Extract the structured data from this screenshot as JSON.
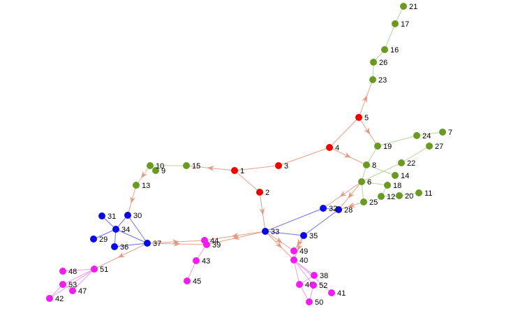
{
  "colors": {
    "red": "#f20000",
    "green": "#6b9a22",
    "blue": "#0a0ae6",
    "magenta": "#f01cf0",
    "edge_red": "#e9a08a",
    "edge_green": "#bcd39a",
    "edge_blue": "#6f6ff0",
    "edge_magenta": "#ec9cec",
    "arrow": "#e0957a"
  },
  "nodes": [
    {
      "id": "1",
      "label": "1",
      "group": "red"
    },
    {
      "id": "2",
      "label": "2",
      "group": "red"
    },
    {
      "id": "3",
      "label": "3",
      "group": "red"
    },
    {
      "id": "4",
      "label": "4",
      "group": "red"
    },
    {
      "id": "5",
      "label": "5",
      "group": "red"
    },
    {
      "id": "6",
      "label": "6",
      "group": "green"
    },
    {
      "id": "7",
      "label": "7",
      "group": "green"
    },
    {
      "id": "8",
      "label": "8",
      "group": "green"
    },
    {
      "id": "9",
      "label": "9",
      "group": "green"
    },
    {
      "id": "10",
      "label": "10",
      "group": "green"
    },
    {
      "id": "11",
      "label": "11",
      "group": "green"
    },
    {
      "id": "12",
      "label": "12",
      "group": "green"
    },
    {
      "id": "13",
      "label": "13",
      "group": "green"
    },
    {
      "id": "14",
      "label": "14",
      "group": "green"
    },
    {
      "id": "15",
      "label": "15",
      "group": "green"
    },
    {
      "id": "16",
      "label": "16",
      "group": "green"
    },
    {
      "id": "17",
      "label": "17",
      "group": "green"
    },
    {
      "id": "18",
      "label": "18",
      "group": "green"
    },
    {
      "id": "19",
      "label": "19",
      "group": "green"
    },
    {
      "id": "20",
      "label": "20",
      "group": "green"
    },
    {
      "id": "21",
      "label": "21",
      "group": "green"
    },
    {
      "id": "22",
      "label": "22",
      "group": "green"
    },
    {
      "id": "23",
      "label": "23",
      "group": "green"
    },
    {
      "id": "24",
      "label": "24",
      "group": "green"
    },
    {
      "id": "25",
      "label": "25",
      "group": "green"
    },
    {
      "id": "26",
      "label": "26",
      "group": "green"
    },
    {
      "id": "27",
      "label": "27",
      "group": "green"
    },
    {
      "id": "28",
      "label": "28",
      "group": "blue"
    },
    {
      "id": "29",
      "label": "29",
      "group": "blue"
    },
    {
      "id": "30",
      "label": "30",
      "group": "blue"
    },
    {
      "id": "31",
      "label": "31",
      "group": "blue"
    },
    {
      "id": "32",
      "label": "32",
      "group": "blue"
    },
    {
      "id": "33",
      "label": "33",
      "group": "blue"
    },
    {
      "id": "34",
      "label": "34",
      "group": "blue"
    },
    {
      "id": "35",
      "label": "35",
      "group": "blue"
    },
    {
      "id": "36",
      "label": "36",
      "group": "blue"
    },
    {
      "id": "37",
      "label": "37",
      "group": "blue"
    },
    {
      "id": "38",
      "label": "38",
      "group": "magenta"
    },
    {
      "id": "39",
      "label": "39",
      "group": "magenta"
    },
    {
      "id": "40",
      "label": "40",
      "group": "magenta"
    },
    {
      "id": "41",
      "label": "41",
      "group": "magenta"
    },
    {
      "id": "42",
      "label": "42",
      "group": "magenta"
    },
    {
      "id": "43",
      "label": "43",
      "group": "magenta"
    },
    {
      "id": "44",
      "label": "44",
      "group": "magenta"
    },
    {
      "id": "45",
      "label": "45",
      "group": "magenta"
    },
    {
      "id": "46",
      "label": "46",
      "group": "magenta"
    },
    {
      "id": "47",
      "label": "47",
      "group": "magenta"
    },
    {
      "id": "48",
      "label": "48",
      "group": "magenta"
    },
    {
      "id": "49",
      "label": "49",
      "group": "magenta"
    },
    {
      "id": "50",
      "label": "50",
      "group": "magenta"
    },
    {
      "id": "51",
      "label": "51",
      "group": "magenta"
    },
    {
      "id": "52",
      "label": "52",
      "group": "magenta"
    },
    {
      "id": "53",
      "label": "53",
      "group": "magenta"
    }
  ],
  "edges": [
    {
      "from": "3",
      "to": "1",
      "color": "red",
      "arrow": false
    },
    {
      "from": "1",
      "to": "15",
      "color": "red",
      "arrow": true
    },
    {
      "from": "1",
      "to": "2",
      "color": "red",
      "arrow": false
    },
    {
      "from": "3",
      "to": "4",
      "color": "red",
      "arrow": false
    },
    {
      "from": "4",
      "to": "5",
      "color": "red",
      "arrow": false
    },
    {
      "from": "4",
      "to": "8",
      "color": "red",
      "arrow": true
    },
    {
      "from": "5",
      "to": "23",
      "color": "red",
      "arrow": true
    },
    {
      "from": "5",
      "to": "19",
      "color": "red",
      "arrow": true
    },
    {
      "from": "2",
      "to": "33",
      "color": "red",
      "arrow": true
    },
    {
      "from": "15",
      "to": "10",
      "color": "green",
      "arrow": false
    },
    {
      "from": "10",
      "to": "9",
      "color": "green",
      "arrow": false
    },
    {
      "from": "10",
      "to": "13",
      "color": "green",
      "arrow": true
    },
    {
      "from": "23",
      "to": "26",
      "color": "green",
      "arrow": false
    },
    {
      "from": "26",
      "to": "16",
      "color": "green",
      "arrow": false
    },
    {
      "from": "16",
      "to": "17",
      "color": "green",
      "arrow": false
    },
    {
      "from": "17",
      "to": "21",
      "color": "green",
      "arrow": false
    },
    {
      "from": "19",
      "to": "24",
      "color": "green",
      "arrow": false
    },
    {
      "from": "24",
      "to": "7",
      "color": "green",
      "arrow": false
    },
    {
      "from": "19",
      "to": "8",
      "color": "green",
      "arrow": false
    },
    {
      "from": "8",
      "to": "14",
      "color": "green",
      "arrow": false
    },
    {
      "from": "8",
      "to": "6",
      "color": "green",
      "arrow": false
    },
    {
      "from": "27",
      "to": "22",
      "color": "green",
      "arrow": false
    },
    {
      "from": "22",
      "to": "6",
      "color": "green",
      "arrow": false
    },
    {
      "from": "6",
      "to": "18",
      "color": "green",
      "arrow": false
    },
    {
      "from": "18",
      "to": "12",
      "color": "green",
      "arrow": false
    },
    {
      "from": "12",
      "to": "20",
      "color": "green",
      "arrow": false
    },
    {
      "from": "20",
      "to": "11",
      "color": "green",
      "arrow": false
    },
    {
      "from": "6",
      "to": "25",
      "color": "green",
      "arrow": false
    },
    {
      "from": "6",
      "to": "32",
      "color": "red",
      "arrow": true
    },
    {
      "from": "6",
      "to": "28",
      "color": "red",
      "arrow": true
    },
    {
      "from": "25",
      "to": "28",
      "color": "red",
      "arrow": true
    },
    {
      "from": "32",
      "to": "33",
      "color": "blue",
      "arrow": false
    },
    {
      "from": "32",
      "to": "28",
      "color": "blue",
      "arrow": false
    },
    {
      "from": "28",
      "to": "35",
      "color": "blue",
      "arrow": false
    },
    {
      "from": "33",
      "to": "35",
      "color": "blue",
      "arrow": false
    },
    {
      "from": "33",
      "to": "44",
      "color": "red",
      "arrow": true
    },
    {
      "from": "33",
      "to": "39",
      "color": "red",
      "arrow": true
    },
    {
      "from": "33",
      "to": "49",
      "color": "red",
      "arrow": true
    },
    {
      "from": "33",
      "to": "40",
      "color": "red",
      "arrow": true
    },
    {
      "from": "35",
      "to": "49",
      "color": "red",
      "arrow": true
    },
    {
      "from": "35",
      "to": "40",
      "color": "red",
      "arrow": true
    },
    {
      "from": "37",
      "to": "44",
      "color": "red",
      "arrow": true
    },
    {
      "from": "37",
      "to": "39",
      "color": "red",
      "arrow": true
    },
    {
      "from": "37",
      "to": "51",
      "color": "red",
      "arrow": true
    },
    {
      "from": "13",
      "to": "30",
      "color": "red",
      "arrow": true
    },
    {
      "from": "30",
      "to": "34",
      "color": "blue",
      "arrow": false
    },
    {
      "from": "30",
      "to": "37",
      "color": "blue",
      "arrow": false
    },
    {
      "from": "31",
      "to": "34",
      "color": "blue",
      "arrow": false
    },
    {
      "from": "34",
      "to": "29",
      "color": "blue",
      "arrow": false
    },
    {
      "from": "34",
      "to": "36",
      "color": "blue",
      "arrow": false
    },
    {
      "from": "34",
      "to": "37",
      "color": "blue",
      "arrow": false
    },
    {
      "from": "36",
      "to": "37",
      "color": "blue",
      "arrow": false
    },
    {
      "from": "44",
      "to": "39",
      "color": "magenta",
      "arrow": false
    },
    {
      "from": "39",
      "to": "43",
      "color": "magenta",
      "arrow": false
    },
    {
      "from": "43",
      "to": "45",
      "color": "magenta",
      "arrow": false
    },
    {
      "from": "49",
      "to": "40",
      "color": "magenta",
      "arrow": false
    },
    {
      "from": "40",
      "to": "38",
      "color": "magenta",
      "arrow": false
    },
    {
      "from": "40",
      "to": "46",
      "color": "magenta",
      "arrow": false
    },
    {
      "from": "40",
      "to": "52",
      "color": "magenta",
      "arrow": false
    },
    {
      "from": "40",
      "to": "41",
      "color": "magenta",
      "arrow": false
    },
    {
      "from": "38",
      "to": "46",
      "color": "magenta",
      "arrow": false
    },
    {
      "from": "46",
      "to": "52",
      "color": "magenta",
      "arrow": false
    },
    {
      "from": "46",
      "to": "50",
      "color": "magenta",
      "arrow": false
    },
    {
      "from": "52",
      "to": "50",
      "color": "magenta",
      "arrow": false
    },
    {
      "from": "51",
      "to": "48",
      "color": "magenta",
      "arrow": false
    },
    {
      "from": "51",
      "to": "53",
      "color": "magenta",
      "arrow": false
    },
    {
      "from": "51",
      "to": "47",
      "color": "magenta",
      "arrow": false
    },
    {
      "from": "51",
      "to": "42",
      "color": "magenta",
      "arrow": false
    },
    {
      "from": "53",
      "to": "42",
      "color": "magenta",
      "arrow": false
    },
    {
      "from": "53",
      "to": "47",
      "color": "magenta",
      "arrow": false
    }
  ]
}
